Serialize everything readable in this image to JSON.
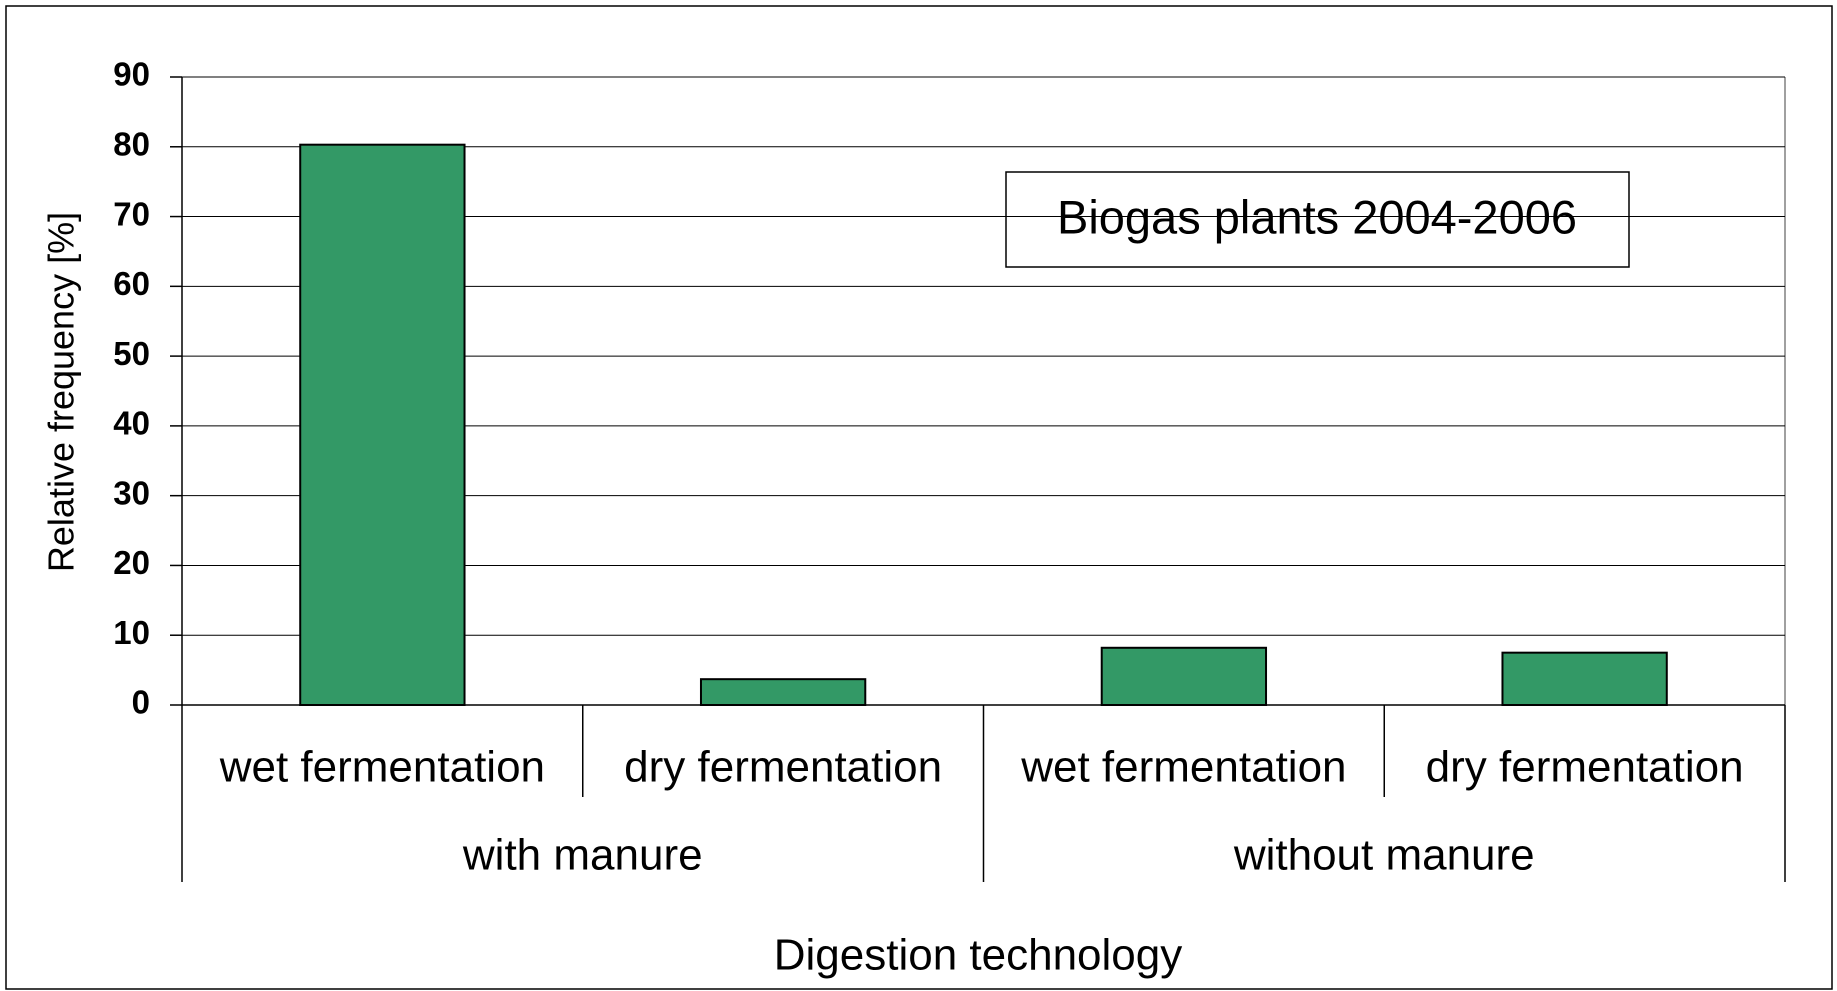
{
  "chart_data": {
    "type": "bar",
    "annotation": "Biogas plants 2004-2006",
    "x_label": "Digestion technology",
    "y_label": "Relative frequency [%]",
    "categories": [
      "wet fermentation",
      "dry fermentation",
      "wet fermentation",
      "dry fermentation"
    ],
    "groups": [
      "with manure",
      "without manure"
    ],
    "values": [
      80.3,
      3.7,
      8.2,
      7.5
    ],
    "color": "#339966",
    "ylim": [
      0,
      90
    ],
    "yticks": [
      0,
      10,
      20,
      30,
      40,
      50,
      60,
      70,
      80,
      90
    ],
    "grid": true
  }
}
